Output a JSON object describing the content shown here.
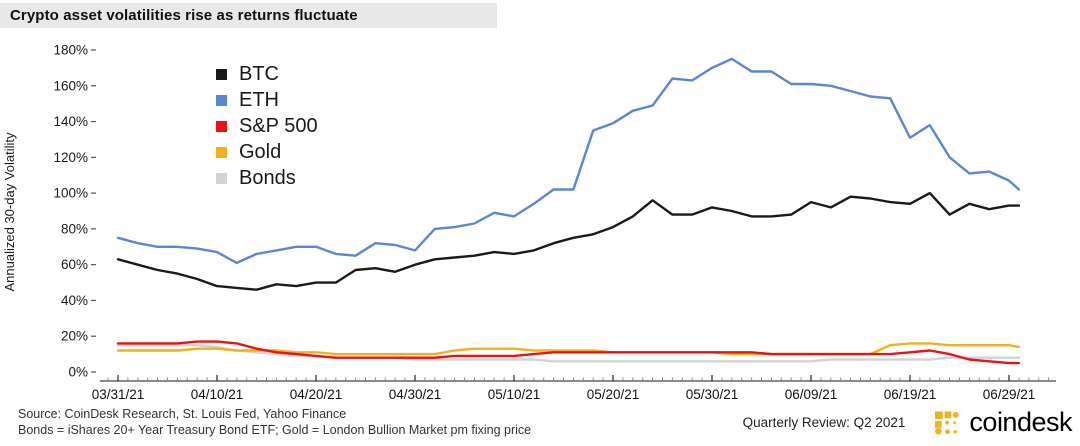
{
  "title": "Crypto asset volatilities rise as returns fluctuate",
  "footer": {
    "source_line1": "Source: CoinDesk Research, St. Louis Fed, Yahoo Finance",
    "source_line2": "Bonds = iShares 20+ Year Treasury Bond ETF; Gold = London Bullion Market pm fixing price",
    "review_label": "Quarterly Review: Q2 2021",
    "logo_text": "coindesk"
  },
  "colors": {
    "title_bar_bg": "#e8e8e8",
    "axis": "#444444",
    "tick_minor": "#888888",
    "text": "#1a1a1a",
    "logo_yellow": "#f0b41b"
  },
  "chart_data": {
    "type": "line",
    "title": "Crypto asset volatilities rise as returns fluctuate",
    "xlabel": "",
    "ylabel": "Annualized 30-day Volatility",
    "ylim": [
      0,
      180
    ],
    "grid": false,
    "legend_position": "upper-left-inside",
    "y_ticks": [
      180,
      160,
      140,
      120,
      100,
      80,
      60,
      40,
      20,
      0
    ],
    "y_tick_suffix": "%",
    "x_tick_labels": [
      "03/31/21",
      "04/10/21",
      "04/20/21",
      "04/30/21",
      "05/10/21",
      "05/20/21",
      "05/30/21",
      "06/09/21",
      "06/19/21",
      "06/29/21"
    ],
    "x": [
      "03/31",
      "04/02",
      "04/04",
      "04/06",
      "04/08",
      "04/10",
      "04/12",
      "04/14",
      "04/16",
      "04/18",
      "04/20",
      "04/22",
      "04/24",
      "04/26",
      "04/28",
      "04/30",
      "05/02",
      "05/04",
      "05/06",
      "05/08",
      "05/10",
      "05/12",
      "05/14",
      "05/16",
      "05/18",
      "05/20",
      "05/22",
      "05/24",
      "05/26",
      "05/28",
      "05/30",
      "06/01",
      "06/03",
      "06/05",
      "06/07",
      "06/09",
      "06/11",
      "06/13",
      "06/15",
      "06/17",
      "06/19",
      "06/21",
      "06/23",
      "06/25",
      "06/27",
      "06/29",
      "06/30"
    ],
    "series": [
      {
        "name": "BTC",
        "color": "#1a1a1a",
        "values": [
          63,
          60,
          57,
          55,
          52,
          48,
          47,
          46,
          49,
          48,
          50,
          50,
          57,
          58,
          56,
          60,
          63,
          64,
          65,
          67,
          66,
          68,
          72,
          75,
          77,
          81,
          87,
          96,
          88,
          88,
          92,
          90,
          87,
          87,
          88,
          95,
          92,
          98,
          97,
          95,
          94,
          100,
          88,
          94,
          91,
          93,
          93
        ]
      },
      {
        "name": "ETH",
        "color": "#5b86d5",
        "values": [
          75,
          72,
          70,
          70,
          69,
          67,
          61,
          66,
          68,
          70,
          70,
          66,
          65,
          72,
          71,
          68,
          80,
          81,
          83,
          89,
          87,
          94,
          102,
          102,
          135,
          139,
          146,
          149,
          164,
          163,
          170,
          175,
          168,
          168,
          161,
          161,
          160,
          157,
          154,
          153,
          131,
          138,
          120,
          111,
          112,
          107,
          102
        ]
      },
      {
        "name": "S&P 500",
        "color": "#e81414",
        "values": [
          16,
          16,
          16,
          16,
          17,
          17,
          16,
          13,
          11,
          10,
          9,
          8,
          8,
          8,
          8,
          8,
          8,
          9,
          9,
          9,
          9,
          10,
          11,
          11,
          11,
          11,
          11,
          11,
          11,
          11,
          11,
          11,
          11,
          10,
          10,
          10,
          10,
          10,
          10,
          10,
          11,
          12,
          10,
          7,
          6,
          5,
          5
        ]
      },
      {
        "name": "Gold",
        "color": "#f2b01e",
        "values": [
          12,
          12,
          12,
          12,
          13,
          13,
          12,
          12,
          12,
          11,
          11,
          10,
          10,
          10,
          10,
          10,
          10,
          12,
          13,
          13,
          13,
          12,
          12,
          12,
          12,
          11,
          11,
          11,
          11,
          11,
          11,
          10,
          10,
          10,
          10,
          10,
          10,
          10,
          10,
          15,
          16,
          16,
          15,
          15,
          15,
          15,
          14
        ]
      },
      {
        "name": "Bonds",
        "color": "#d3d3d3",
        "values": [
          15,
          15,
          15,
          15,
          15,
          14,
          12,
          11,
          10,
          9,
          9,
          8,
          8,
          8,
          8,
          7,
          7,
          7,
          7,
          7,
          7,
          7,
          6,
          6,
          6,
          6,
          6,
          6,
          6,
          6,
          6,
          6,
          6,
          6,
          6,
          6,
          7,
          7,
          7,
          7,
          7,
          7,
          8,
          8,
          8,
          8,
          8
        ]
      }
    ],
    "draw_order": [
      "Bonds",
      "Gold",
      "S&P 500",
      "BTC",
      "ETH"
    ]
  }
}
